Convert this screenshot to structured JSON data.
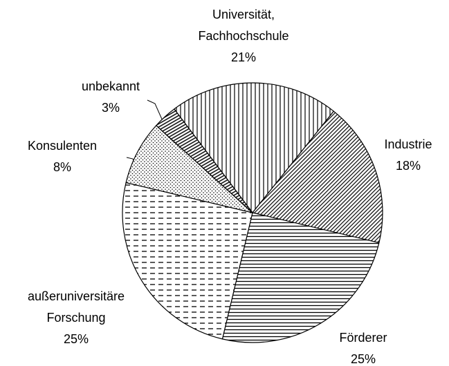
{
  "chart_data": {
    "type": "pie",
    "categories": [
      "Universität, Fachhochschule",
      "Industrie",
      "Förderer",
      "außeruniversitäre Forschung",
      "Konsulenten",
      "unbekannt"
    ],
    "values": [
      21,
      18,
      25,
      25,
      8,
      3
    ],
    "value_labels": [
      "21%",
      "18%",
      "25%",
      "25%",
      "8%",
      "3%"
    ]
  }
}
